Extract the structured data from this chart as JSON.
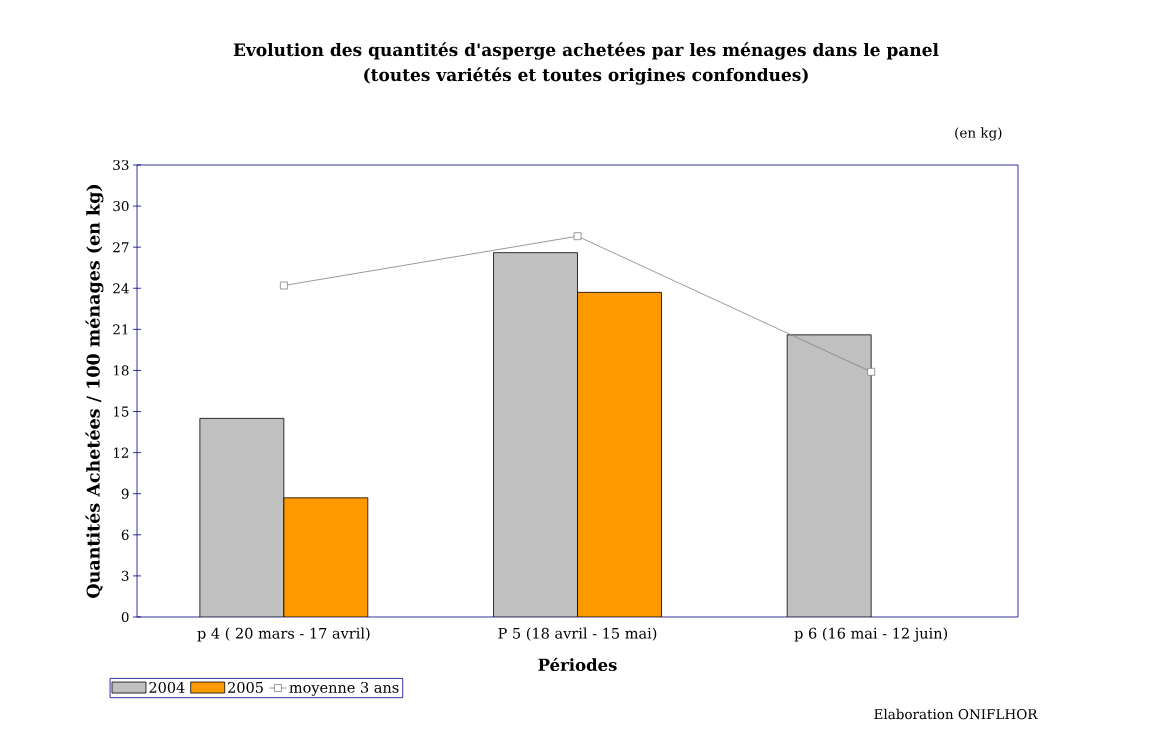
{
  "chart_data": {
    "type": "bar",
    "title": "Evolution des quantités d'asperge achetées par les ménages dans le panel",
    "subtitle": "(toutes variétés et toutes origines confondues)",
    "xlabel": "Périodes",
    "ylabel": "Quantités Achetées / 100 ménages (en kg)",
    "categories": [
      "p 4 ( 20 mars - 17 avril)",
      "P 5 (18 avril - 15 mai)",
      "p 6 (16 mai - 12 juin)"
    ],
    "series": [
      {
        "name": "2004",
        "color": "#c0c0c0",
        "values": [
          14.5,
          26.6,
          20.6
        ]
      },
      {
        "name": "2005",
        "color": "#ff9900",
        "values": [
          8.7,
          23.7,
          null
        ]
      },
      {
        "name": "moyenne 3 ans",
        "type": "line",
        "color": "#808080",
        "marker": "square",
        "values": [
          24.2,
          27.8,
          17.9
        ]
      }
    ],
    "ylim": [
      0,
      33
    ],
    "yticks": [
      0,
      3,
      6,
      9,
      12,
      15,
      18,
      21,
      24,
      27,
      30,
      33
    ],
    "legend": "bottom left",
    "annotations": [
      "(en kg)",
      "Elaboration ONIFLHOR"
    ]
  }
}
